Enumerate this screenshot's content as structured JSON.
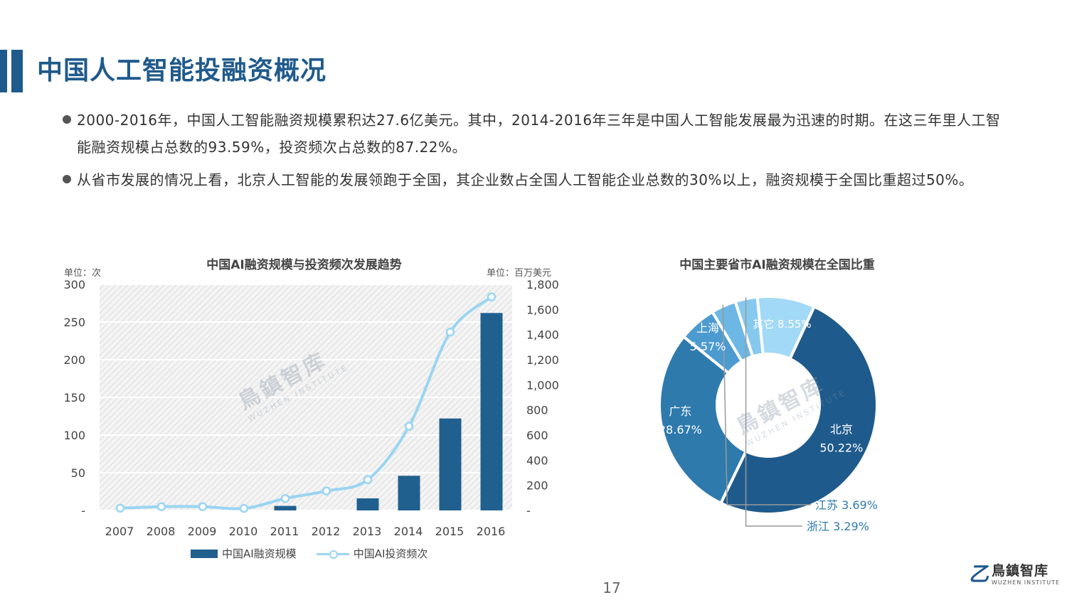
{
  "page": {
    "title": "中国人工智能投融资概况",
    "bullets": [
      "2000-2016年，中国人工智能融资规模累积达27.6亿美元。其中，2014-2016年三年是中国人工智能发展最为迅速的时期。在这三年里人工智能融资规模占总数的93.59%，投资频次占总数的87.22%。",
      "从省市发展的情况上看，北京人工智能的发展领跑于全国，其企业数占全国人工智能企业总数的30%以上，融资规模于全国比重超过50%。"
    ],
    "page_number": "17",
    "logo": {
      "main": "鳥鎮智库",
      "sub": "WUZHEN INSTITUTE",
      "mark": "乙"
    },
    "watermark": {
      "main": "鳥鎮智库",
      "sub": "WUZHEN INSTITUTE"
    }
  },
  "chart_data": [
    {
      "type": "bar",
      "title": "中国AI融资规模与投资频次发展趋势",
      "left_unit": "单位：次",
      "right_unit": "单位：百万美元",
      "categories": [
        "2007",
        "2008",
        "2009",
        "2010",
        "2011",
        "2012",
        "2013",
        "2014",
        "2015",
        "2016"
      ],
      "left_axis": {
        "ticks": [
          "300",
          "250",
          "200",
          "150",
          "100",
          "50",
          "-"
        ],
        "range": [
          0,
          300
        ]
      },
      "right_axis": {
        "ticks": [
          "1,800",
          "1,600",
          "1,400",
          "1,200",
          "1,000",
          "800",
          "600",
          "400",
          "200",
          "-"
        ],
        "range": [
          0,
          1800
        ]
      },
      "series": [
        {
          "name": "中国AI融资规模",
          "kind": "bar",
          "axis": "left",
          "color": "#20608f",
          "values": [
            0,
            0,
            0,
            0,
            6,
            0,
            16,
            46,
            122,
            262
          ]
        },
        {
          "name": "中国AI投资频次",
          "kind": "line",
          "axis": "right",
          "color": "#9ad5f2",
          "values": [
            18,
            30,
            30,
            16,
            95,
            155,
            245,
            670,
            1420,
            1700
          ]
        }
      ],
      "grid": true
    },
    {
      "type": "pie",
      "title": "中国主要省市AI融资规模在全国比重",
      "slices": [
        {
          "label": "北京",
          "pct": "50.22%",
          "value": 50.22,
          "color": "#1f5a8c"
        },
        {
          "label": "广东",
          "pct": "28.67%",
          "value": 28.67,
          "color": "#2e7aad"
        },
        {
          "label": "上海",
          "pct": "5.57%",
          "value": 5.57,
          "color": "#4c9bd0"
        },
        {
          "label": "江苏",
          "pct": "3.69%",
          "value": 3.69,
          "color": "#6cb7e4"
        },
        {
          "label": "浙江",
          "pct": "3.29%",
          "value": 3.29,
          "color": "#86c9ef"
        },
        {
          "label": "其它",
          "pct": "8.55%",
          "value": 8.55,
          "color": "#a2d9f6"
        }
      ]
    }
  ]
}
